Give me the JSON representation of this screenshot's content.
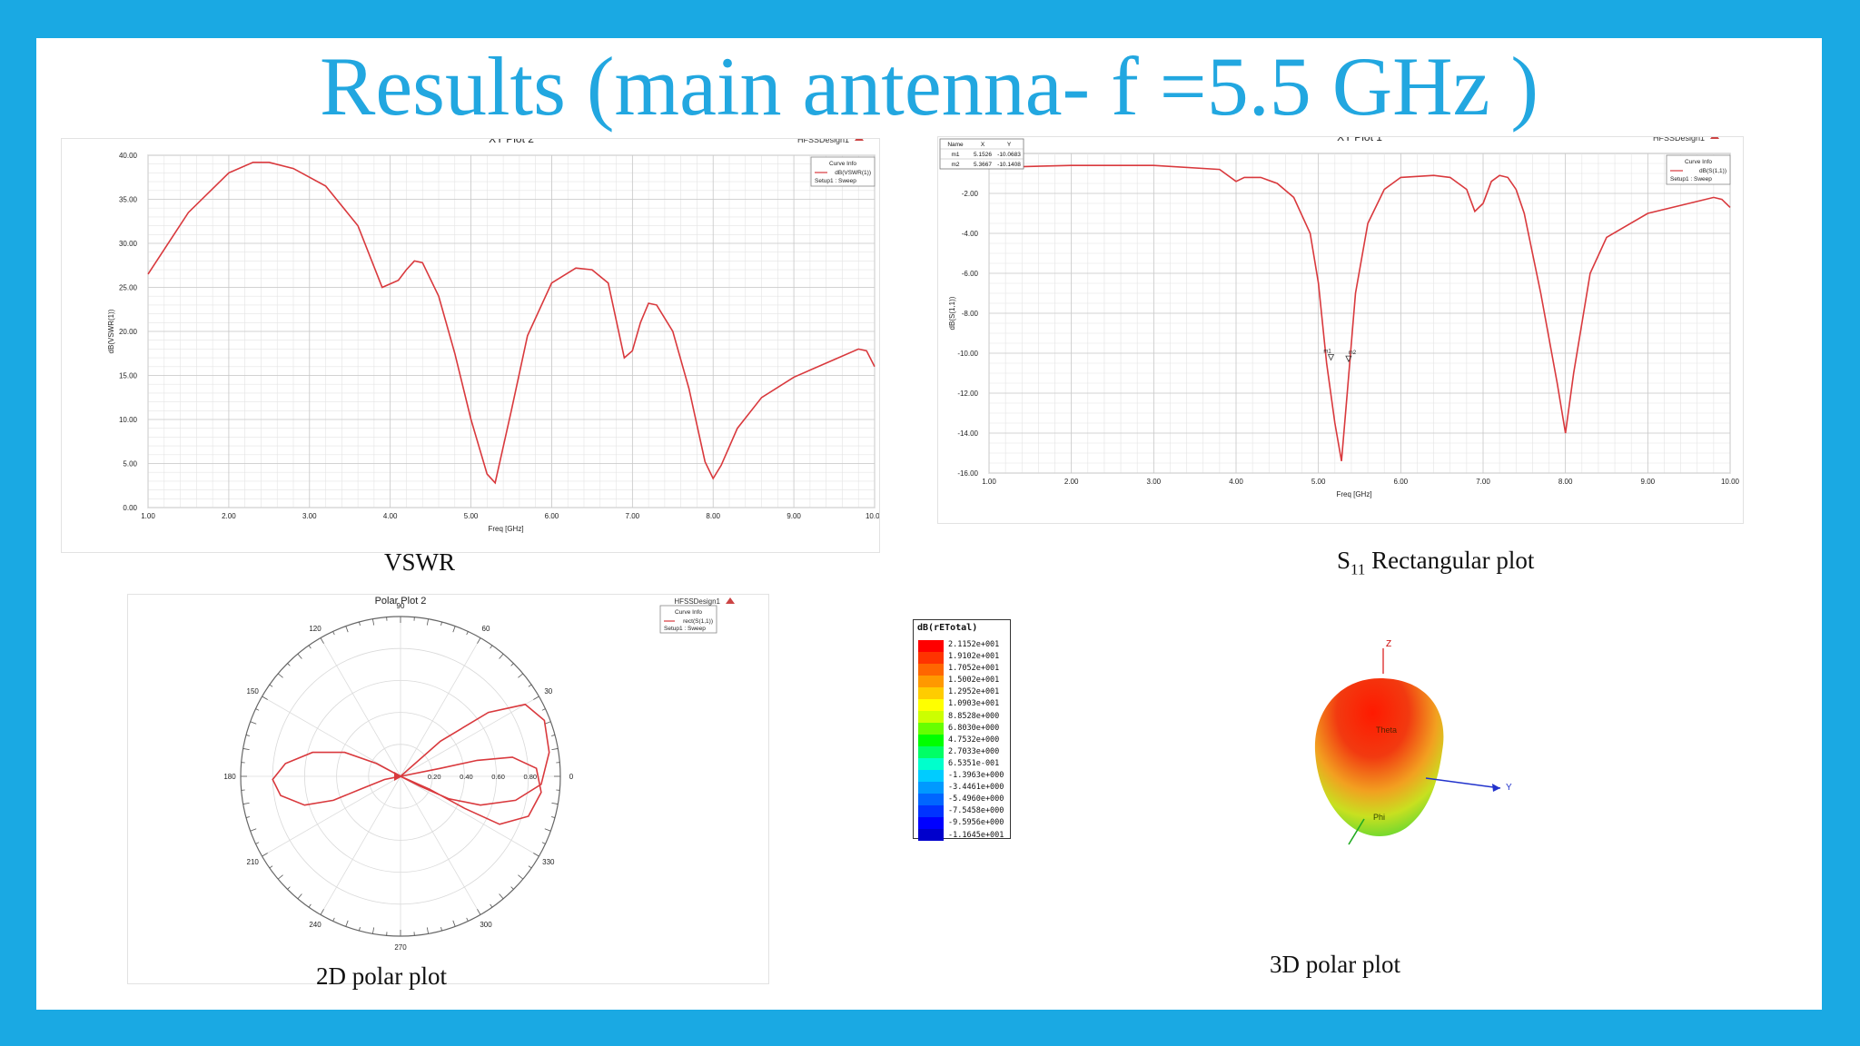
{
  "slide": {
    "title": "Results (main antenna- f =5.5 GHz )",
    "captions": {
      "vswr": "VSWR",
      "s11_main": "S",
      "s11_sub": "11",
      "s11_rest": " Rectangular plot",
      "polar2d": "2D polar plot",
      "polar3d": "3D polar plot"
    },
    "colors": {
      "background": "#1aa9e3",
      "title": "#22a7e0",
      "curve": "#d9393d"
    }
  },
  "chart_data": [
    {
      "type": "line",
      "title": "XY Plot 2",
      "design_label": "HFSSDesign1",
      "xlabel": "Freq [GHz]",
      "ylabel": "dB(VSWR(1))",
      "xlim": [
        1,
        10
      ],
      "ylim": [
        0,
        40
      ],
      "xticks": [
        "1.00",
        "2.00",
        "3.00",
        "4.00",
        "5.00",
        "6.00",
        "7.00",
        "8.00",
        "9.00",
        "10.00"
      ],
      "yticks": [
        "0.00",
        "5.00",
        "10.00",
        "15.00",
        "20.00",
        "25.00",
        "30.00",
        "35.00",
        "40.00"
      ],
      "grid": true,
      "legend": {
        "heading": "Curve Info",
        "entries": [
          "dB(VSWR(1))",
          "Setup1 : Sweep"
        ],
        "position": "top-right"
      },
      "series": [
        {
          "name": "dB(VSWR(1))",
          "color": "#d9393d",
          "x": [
            1.0,
            1.5,
            2.0,
            2.3,
            2.5,
            2.8,
            3.2,
            3.6,
            3.9,
            4.1,
            4.2,
            4.3,
            4.4,
            4.6,
            4.8,
            5.0,
            5.2,
            5.3,
            5.5,
            5.7,
            6.0,
            6.3,
            6.5,
            6.7,
            6.9,
            7.0,
            7.1,
            7.2,
            7.3,
            7.5,
            7.7,
            7.9,
            8.0,
            8.1,
            8.3,
            8.6,
            9.0,
            9.5,
            9.8,
            9.9,
            10.0
          ],
          "y": [
            26.5,
            33.5,
            38.0,
            39.2,
            39.2,
            38.5,
            36.5,
            32.0,
            25.0,
            25.8,
            27.0,
            28.0,
            27.8,
            24.0,
            17.5,
            10.0,
            3.8,
            2.8,
            11.0,
            19.5,
            25.5,
            27.2,
            27.0,
            25.5,
            17.0,
            17.8,
            21.0,
            23.2,
            23.0,
            20.0,
            13.5,
            5.2,
            3.3,
            4.8,
            9.0,
            12.5,
            14.8,
            16.8,
            18.0,
            17.8,
            16.0
          ]
        }
      ]
    },
    {
      "type": "line",
      "title": "XY Plot 1",
      "design_label": "HFSSDesign1",
      "xlabel": "Freq [GHz]",
      "ylabel": "dB(S(1,1))",
      "xlim": [
        1,
        10
      ],
      "ylim": [
        -16,
        0
      ],
      "xticks": [
        "1.00",
        "2.00",
        "3.00",
        "4.00",
        "5.00",
        "6.00",
        "7.00",
        "8.00",
        "9.00",
        "10.00"
      ],
      "yticks": [
        "-16.00",
        "-14.00",
        "-12.00",
        "-10.00",
        "-8.00",
        "-6.00",
        "-4.00",
        "-2.00"
      ],
      "grid": true,
      "legend": {
        "heading": "Curve Info",
        "entries": [
          "dB(S(1,1))",
          "Setup1 : Sweep"
        ],
        "position": "top-right"
      },
      "marker_table": {
        "headers": [
          "Name",
          "X",
          "Y"
        ],
        "rows": [
          [
            "m1",
            "5.1526",
            "-10.0683"
          ],
          [
            "m2",
            "5.3667",
            "-10.1408"
          ]
        ]
      },
      "markers": [
        {
          "name": "m1",
          "x": 5.1526,
          "y": -10.0683
        },
        {
          "name": "m2",
          "x": 5.3667,
          "y": -10.1408
        }
      ],
      "series": [
        {
          "name": "dB(S(1,1))",
          "color": "#d9393d",
          "x": [
            1.0,
            2.0,
            3.0,
            3.8,
            4.0,
            4.1,
            4.3,
            4.5,
            4.7,
            4.9,
            5.0,
            5.1,
            5.2,
            5.28,
            5.35,
            5.45,
            5.6,
            5.8,
            6.0,
            6.4,
            6.6,
            6.8,
            6.9,
            7.0,
            7.1,
            7.2,
            7.3,
            7.4,
            7.5,
            7.7,
            7.9,
            8.0,
            8.1,
            8.3,
            8.5,
            9.0,
            9.5,
            9.8,
            9.9,
            10.0
          ],
          "y": [
            -0.7,
            -0.6,
            -0.6,
            -0.8,
            -1.4,
            -1.2,
            -1.2,
            -1.5,
            -2.2,
            -4.0,
            -6.5,
            -10.5,
            -13.5,
            -15.4,
            -12.0,
            -7.0,
            -3.5,
            -1.8,
            -1.2,
            -1.1,
            -1.2,
            -1.8,
            -2.9,
            -2.5,
            -1.4,
            -1.1,
            -1.2,
            -1.8,
            -3.0,
            -7.0,
            -11.5,
            -14.0,
            -11.0,
            -6.0,
            -4.2,
            -3.0,
            -2.5,
            -2.2,
            -2.3,
            -2.7
          ]
        }
      ]
    },
    {
      "type": "polar",
      "title": "Polar Plot 2",
      "design_label": "HFSSDesign1",
      "angle_labels": [
        "0",
        "30",
        "60",
        "90",
        "120",
        "150",
        "180",
        "210",
        "240",
        "270",
        "300",
        "330"
      ],
      "radial_labels": [
        "0.20",
        "0.40",
        "0.60",
        "0.80"
      ],
      "rlim": [
        0,
        1
      ],
      "legend": {
        "heading": "Curve Info",
        "entries": [
          "rect(S(1,1))",
          "Setup1 : Sweep"
        ],
        "position": "top-right"
      },
      "series": [
        {
          "name": "rect(S(1,1))",
          "color": "#d9393d",
          "re": [
            0.0,
            0.25,
            0.55,
            0.78,
            0.9,
            0.93,
            0.88,
            0.72,
            0.5,
            0.3,
            0.12,
            0.0,
            -0.15,
            -0.35,
            -0.55,
            -0.72,
            -0.8,
            -0.75,
            -0.6,
            -0.42,
            -0.25,
            -0.1,
            0.0,
            0.18,
            0.4,
            0.62,
            0.8,
            0.88,
            0.85,
            0.7,
            0.48,
            0.25,
            0.0
          ],
          "im": [
            0.0,
            0.22,
            0.4,
            0.45,
            0.35,
            0.15,
            -0.05,
            -0.15,
            -0.18,
            -0.14,
            -0.06,
            0.0,
            0.08,
            0.15,
            0.15,
            0.08,
            -0.02,
            -0.12,
            -0.18,
            -0.15,
            -0.08,
            -0.02,
            0.0,
            -0.08,
            -0.2,
            -0.3,
            -0.25,
            -0.1,
            0.05,
            0.12,
            0.1,
            0.05,
            0.0
          ]
        }
      ]
    },
    {
      "type": "heatmap",
      "title": "dB(rETotal)",
      "scale": [
        "2.1152e+001",
        "1.9102e+001",
        "1.7052e+001",
        "1.5002e+001",
        "1.2952e+001",
        "1.0903e+001",
        "8.8528e+000",
        "6.8030e+000",
        "4.7532e+000",
        "2.7033e+000",
        "6.5351e-001",
        "-1.3963e+000",
        "-3.4461e+000",
        "-5.4960e+000",
        "-7.5458e+000",
        "-9.5956e+000",
        "-1.1645e+001"
      ],
      "colors": [
        "#ff0000",
        "#ff3300",
        "#ff6600",
        "#ff9900",
        "#ffcc00",
        "#ffff00",
        "#ccff00",
        "#66ff00",
        "#00ff00",
        "#00ff66",
        "#00ffcc",
        "#00ccff",
        "#0099ff",
        "#0066ff",
        "#0033ff",
        "#0000ff",
        "#0000cc"
      ],
      "axes": {
        "z": "Z",
        "y": "Y",
        "theta": "Theta",
        "phi": "Phi"
      }
    }
  ]
}
